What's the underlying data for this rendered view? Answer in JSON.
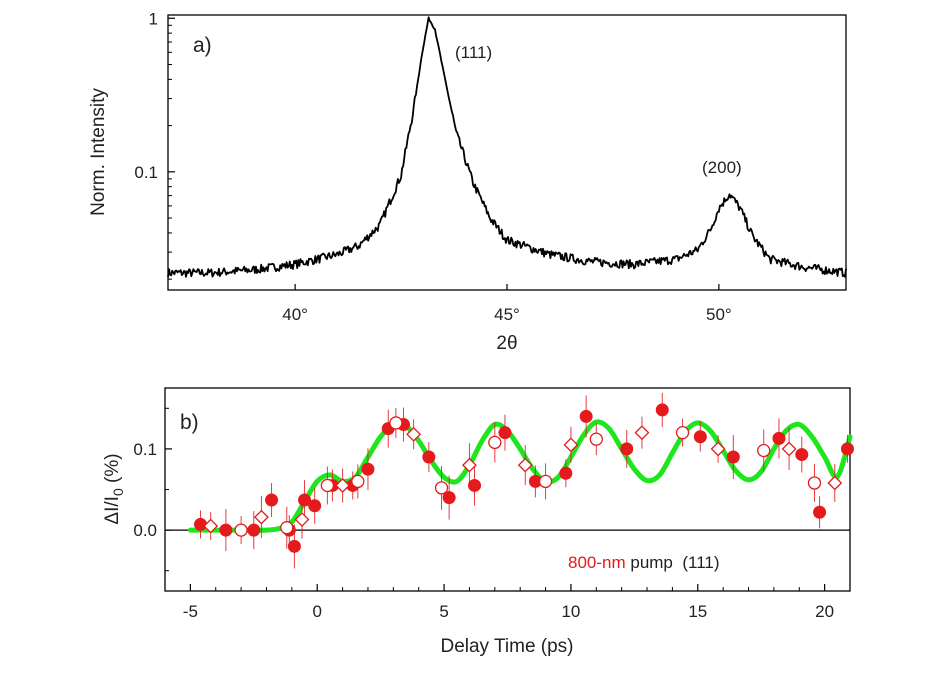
{
  "colors": {
    "trace": "#000000",
    "peak200": "#3a9ad9",
    "pump": "#e21b1b",
    "fit": "#1ee61e",
    "points": "#e41a1c"
  },
  "chart_data": [
    {
      "type": "line",
      "panel_label": "a)",
      "xlabel": "2θ",
      "ylabel": "Norm. Intensity",
      "xlim": [
        37,
        53
      ],
      "ylim": [
        0.017,
        1.05
      ],
      "yscale": "log",
      "xticks": [
        40,
        45,
        50
      ],
      "xtick_labels": [
        "40°",
        "45°",
        "50°"
      ],
      "yticks": [
        0.1,
        1
      ],
      "ytick_labels": [
        "0.1",
        "1"
      ],
      "grid": false,
      "peaks": [
        {
          "label": "(111)",
          "x": 43.15,
          "height": 1.0
        },
        {
          "label": "(200)",
          "x": 50.25,
          "height": 0.072
        }
      ],
      "series": [
        {
          "x": [
            37.0,
            38.0,
            39.0,
            40.0,
            41.0,
            41.5,
            42.0,
            42.5,
            42.8,
            43.0,
            43.15,
            43.3,
            43.5,
            43.8,
            44.2,
            44.6,
            45.0,
            46.0,
            47.0,
            48.0,
            49.0,
            49.5,
            49.8,
            50.0,
            50.25,
            50.5,
            50.8,
            51.2,
            52.0,
            53.0
          ],
          "values": [
            0.022,
            0.022,
            0.023,
            0.025,
            0.029,
            0.033,
            0.045,
            0.095,
            0.26,
            0.6,
            1.0,
            0.85,
            0.45,
            0.18,
            0.085,
            0.05,
            0.036,
            0.029,
            0.026,
            0.025,
            0.027,
            0.031,
            0.042,
            0.058,
            0.072,
            0.058,
            0.038,
            0.027,
            0.024,
            0.022
          ]
        }
      ]
    },
    {
      "type": "scatter",
      "panel_label": "b)",
      "xlabel": "Delay Time (ps)",
      "ylabel": "ΔI/I0 (%)",
      "ylabel_main": "ΔI/I",
      "ylabel_sub": "0",
      "ylabel_tail": " (%)",
      "xlim": [
        -6,
        21
      ],
      "ylim": [
        -0.075,
        0.175
      ],
      "xticks": [
        -5,
        0,
        5,
        10,
        15,
        20
      ],
      "xtick_labels": [
        "-5",
        "0",
        "5",
        "10",
        "15",
        "20"
      ],
      "yticks": [
        0.0,
        0.1
      ],
      "ytick_labels": [
        "0.0",
        "0.1"
      ],
      "zero_line": true,
      "grid": false,
      "legend_text": {
        "red": "800-nm",
        "rest": " pump  (111)"
      },
      "fit": {
        "x": [
          -5.0,
          -4.0,
          -3.0,
          -2.0,
          -1.5,
          -1.0,
          -0.5,
          0.0,
          0.5,
          1.0,
          1.5,
          2.0,
          2.5,
          3.0,
          3.5,
          4.0,
          4.5,
          5.0,
          5.5,
          6.0,
          6.5,
          7.0,
          7.5,
          8.0,
          8.5,
          9.0,
          9.5,
          10.0,
          10.5,
          11.0,
          11.5,
          12.0,
          12.5,
          13.0,
          13.5,
          14.0,
          14.5,
          15.0,
          15.5,
          16.0,
          16.5,
          17.0,
          17.5,
          18.0,
          18.5,
          19.0,
          19.5,
          20.0,
          20.5,
          21.0
        ],
        "values": [
          0.0,
          0.0,
          0.0,
          0.0,
          0.002,
          0.01,
          0.035,
          0.06,
          0.068,
          0.06,
          0.065,
          0.09,
          0.115,
          0.13,
          0.128,
          0.11,
          0.085,
          0.065,
          0.06,
          0.08,
          0.11,
          0.13,
          0.122,
          0.1,
          0.075,
          0.06,
          0.065,
          0.09,
          0.117,
          0.133,
          0.125,
          0.1,
          0.075,
          0.061,
          0.068,
          0.095,
          0.121,
          0.132,
          0.122,
          0.098,
          0.073,
          0.062,
          0.072,
          0.1,
          0.123,
          0.13,
          0.115,
          0.09,
          0.066,
          0.115
        ]
      },
      "series": [
        {
          "marker": "filled-circle",
          "x": [
            -4.6,
            -3.6,
            -2.5,
            -1.8,
            -1.1,
            -0.9,
            -0.5,
            -0.1,
            0.6,
            1.4,
            2.0,
            2.8,
            3.4,
            4.4,
            5.2,
            6.2,
            7.4,
            8.6,
            9.8,
            10.6,
            12.2,
            13.6,
            15.1,
            16.4,
            18.2,
            19.1,
            19.8,
            20.9
          ],
          "values": [
            0.007,
            0.0,
            0.0,
            0.037,
            0.0,
            -0.02,
            0.037,
            0.03,
            0.055,
            0.055,
            0.075,
            0.125,
            0.13,
            0.09,
            0.04,
            0.055,
            0.12,
            0.06,
            0.07,
            0.14,
            0.1,
            0.148,
            0.115,
            0.09,
            0.113,
            0.093,
            0.022,
            0.1
          ]
        },
        {
          "marker": "open-circle",
          "x": [
            -3.0,
            -1.2,
            0.4,
            1.6,
            3.1,
            4.9,
            7.0,
            9.0,
            11.0,
            14.4,
            17.6,
            19.6
          ],
          "values": [
            0.0,
            0.003,
            0.055,
            0.06,
            0.132,
            0.052,
            0.108,
            0.06,
            0.112,
            0.12,
            0.098,
            0.058
          ]
        },
        {
          "marker": "open-diamond",
          "x": [
            -4.2,
            -2.2,
            -0.6,
            1.0,
            3.8,
            6.0,
            8.2,
            10.0,
            12.8,
            15.8,
            18.6,
            20.4
          ],
          "values": [
            0.005,
            0.016,
            0.013,
            0.055,
            0.118,
            0.08,
            0.08,
            0.105,
            0.12,
            0.1,
            0.1,
            0.058
          ]
        }
      ]
    }
  ]
}
